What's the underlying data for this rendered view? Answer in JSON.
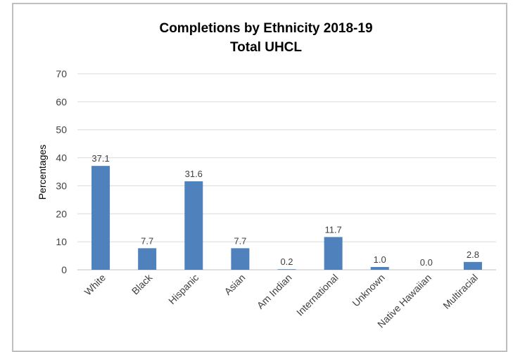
{
  "chart_data": {
    "type": "bar",
    "title": "Completions by Ethnicity 2018-19",
    "subtitle": "Total UHCL",
    "xlabel": "",
    "ylabel": "Percentages",
    "ylim": [
      0,
      70
    ],
    "yticks": [
      "0",
      "10",
      "20",
      "30",
      "40",
      "50",
      "60",
      "70"
    ],
    "grid": true,
    "legend": "none",
    "bar_color": "#4f81bd",
    "categories": [
      "White",
      "Black",
      "Hispanic",
      "Asian",
      "Am Indian",
      "International",
      "Unknown",
      "Native Hawaiian",
      "Multiracial"
    ],
    "values": [
      37.1,
      7.7,
      31.6,
      7.7,
      0.2,
      11.7,
      1.0,
      0.0,
      2.8
    ],
    "data_labels": [
      "37.1",
      "7.7",
      "31.6",
      "7.7",
      "0.2",
      "11.7",
      "1.0",
      "0.0",
      "2.8"
    ]
  }
}
